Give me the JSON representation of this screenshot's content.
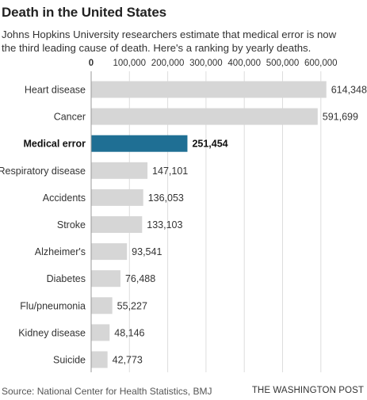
{
  "header": {
    "title": "Death in the United States",
    "subtitle": "Johns Hopkins University researchers estimate that medical error is now the third leading cause of death. Here's a ranking by yearly deaths."
  },
  "footer": {
    "source": "Source: National Center for Health Statistics, BMJ",
    "credit": "THE WASHINGTON POST"
  },
  "colors": {
    "bar_default": "#d6d6d6",
    "bar_highlight": "#1f6f94",
    "gridline": "#dddddd",
    "text": "#333333"
  },
  "chart_data": {
    "type": "bar",
    "orientation": "horizontal",
    "categories": [
      "Heart disease",
      "Cancer",
      "Medical error",
      "Respiratory disease",
      "Accidents",
      "Stroke",
      "Alzheimer's",
      "Diabetes",
      "Flu/pneumonia",
      "Kidney disease",
      "Suicide"
    ],
    "values": [
      614348,
      591699,
      251454,
      147101,
      136053,
      133103,
      93541,
      76488,
      55227,
      48146,
      42773
    ],
    "value_labels": [
      "614,348",
      "591,699",
      "251,454",
      "147,101",
      "136,053",
      "133,103",
      "93,541",
      "76,488",
      "55,227",
      "48,146",
      "42,773"
    ],
    "highlight_index": 2,
    "xlim": [
      0,
      600000
    ],
    "ticks": [
      0,
      100000,
      200000,
      300000,
      400000,
      500000,
      600000
    ],
    "tick_labels": [
      "0",
      "100,000",
      "200,000",
      "300,000",
      "400,000",
      "500,000",
      "600,000"
    ],
    "grid": true,
    "axis_position": "top"
  }
}
